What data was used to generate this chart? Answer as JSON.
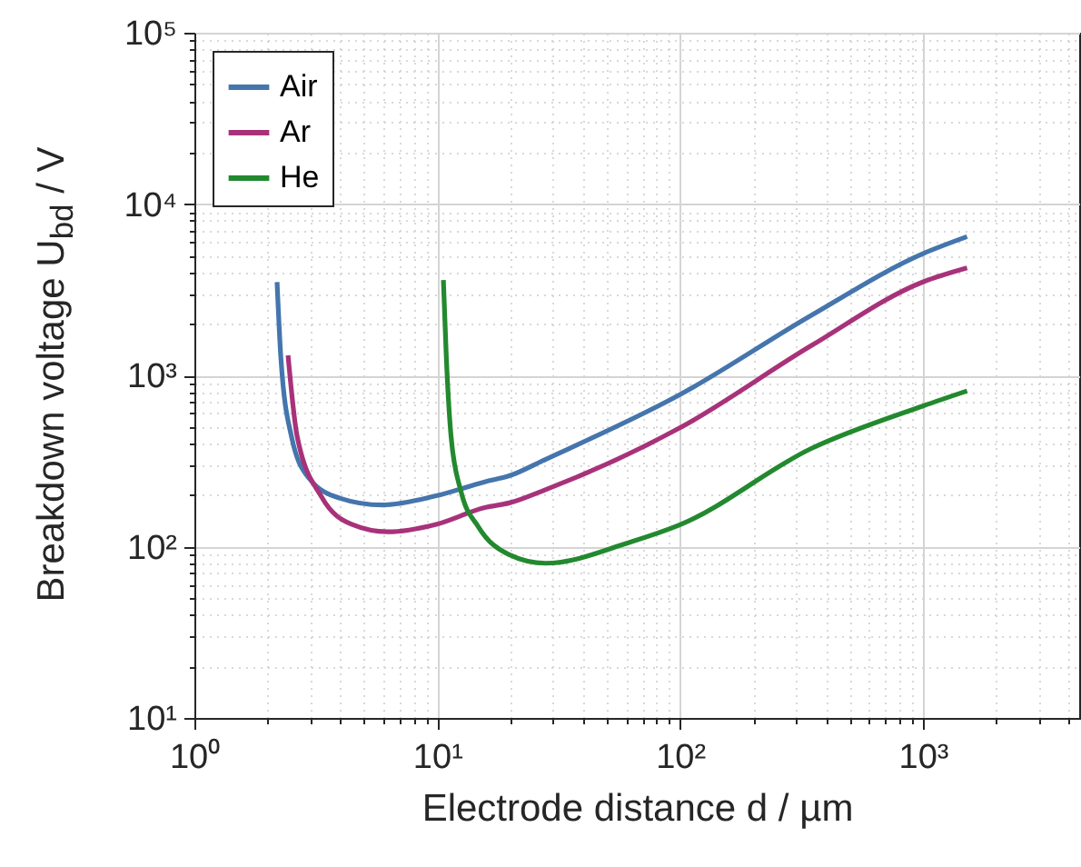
{
  "chart_data": {
    "type": "line",
    "xlabel": "Electrode distance d / µm",
    "ylabel": "Breakdown voltage U$_{bd}$ / V",
    "log": "xy",
    "grid": true,
    "legend": "top left",
    "line_style": "solid",
    "marker": "none",
    "xlim": [
      1,
      4400
    ],
    "ylim": [
      10,
      100000
    ],
    "xticks": [
      {
        "value": 1,
        "label": "10⁰"
      },
      {
        "value": 2,
        "label": null
      },
      {
        "value": 3,
        "label": null
      },
      {
        "value": 4,
        "label": null
      },
      {
        "value": 5,
        "label": null
      },
      {
        "value": 6,
        "label": null
      },
      {
        "value": 7,
        "label": null
      },
      {
        "value": 8,
        "label": null
      },
      {
        "value": 9,
        "label": null
      },
      {
        "value": 10,
        "label": "10¹"
      },
      {
        "value": 20,
        "label": null
      },
      {
        "value": 30,
        "label": null
      },
      {
        "value": 40,
        "label": null
      },
      {
        "value": 50,
        "label": null
      },
      {
        "value": 60,
        "label": null
      },
      {
        "value": 70,
        "label": null
      },
      {
        "value": 80,
        "label": null
      },
      {
        "value": 90,
        "label": null
      },
      {
        "value": 100,
        "label": "10²"
      },
      {
        "value": 200,
        "label": null
      },
      {
        "value": 300,
        "label": null
      },
      {
        "value": 400,
        "label": null
      },
      {
        "value": 500,
        "label": null
      },
      {
        "value": 600,
        "label": null
      },
      {
        "value": 700,
        "label": null
      },
      {
        "value": 800,
        "label": null
      },
      {
        "value": 900,
        "label": null
      },
      {
        "value": 1000,
        "label": "10³"
      },
      {
        "value": 2000,
        "label": null
      },
      {
        "value": 3000,
        "label": null
      },
      {
        "value": 4000,
        "label": null
      }
    ],
    "yticks": [
      {
        "value": 10,
        "label": "10¹"
      },
      {
        "value": 20,
        "label": null
      },
      {
        "value": 30,
        "label": null
      },
      {
        "value": 40,
        "label": null
      },
      {
        "value": 50,
        "label": null
      },
      {
        "value": 60,
        "label": null
      },
      {
        "value": 70,
        "label": null
      },
      {
        "value": 80,
        "label": null
      },
      {
        "value": 90,
        "label": null
      },
      {
        "value": 100,
        "label": "10²"
      },
      {
        "value": 200,
        "label": null
      },
      {
        "value": 300,
        "label": null
      },
      {
        "value": 400,
        "label": null
      },
      {
        "value": 500,
        "label": null
      },
      {
        "value": 600,
        "label": null
      },
      {
        "value": 700,
        "label": null
      },
      {
        "value": 800,
        "label": null
      },
      {
        "value": 900,
        "label": null
      },
      {
        "value": 1000,
        "label": "10³"
      },
      {
        "value": 2000,
        "label": null
      },
      {
        "value": 3000,
        "label": null
      },
      {
        "value": 4000,
        "label": null
      },
      {
        "value": 5000,
        "label": null
      },
      {
        "value": 6000,
        "label": null
      },
      {
        "value": 7000,
        "label": null
      },
      {
        "value": 8000,
        "label": null
      },
      {
        "value": 9000,
        "label": null
      },
      {
        "value": 10000,
        "label": "10⁴"
      },
      {
        "value": 20000,
        "label": null
      },
      {
        "value": 30000,
        "label": null
      },
      {
        "value": 40000,
        "label": null
      },
      {
        "value": 50000,
        "label": null
      },
      {
        "value": 60000,
        "label": null
      },
      {
        "value": 70000,
        "label": null
      },
      {
        "value": 80000,
        "label": null
      },
      {
        "value": 90000,
        "label": null
      },
      {
        "value": 100000,
        "label": "10⁵"
      }
    ],
    "series": [
      {
        "name": "Air",
        "color": "#4575ad",
        "x": [
          2.19,
          2.27,
          2.51,
          2.97,
          3.96,
          5.92,
          9.9,
          15.7,
          19.8,
          27.9,
          101,
          347,
          1000,
          1520
        ],
        "values": [
          3500,
          1270,
          440,
          250,
          192,
          175,
          198,
          239,
          259,
          323,
          778,
          2240,
          5130,
          6450
        ]
      },
      {
        "name": "Ar",
        "color": "#a8327a",
        "x": [
          2.43,
          2.65,
          3.34,
          4.44,
          6.26,
          9.9,
          15.7,
          19.8,
          27.9,
          101,
          347,
          1000,
          1520
        ],
        "values": [
          1310,
          440,
          195,
          135,
          122,
          135,
          169,
          180,
          215,
          498,
          1490,
          3510,
          4240
        ]
      },
      {
        "name": "He",
        "color": "#23892f",
        "x": [
          10.6,
          10.9,
          11.4,
          12.5,
          14.8,
          19.7,
          27.9,
          62,
          101,
          347,
          1000,
          1520
        ],
        "values": [
          3600,
          1270,
          440,
          212,
          130,
          90,
          80,
          106,
          135,
          374,
          662,
          811
        ]
      }
    ]
  }
}
